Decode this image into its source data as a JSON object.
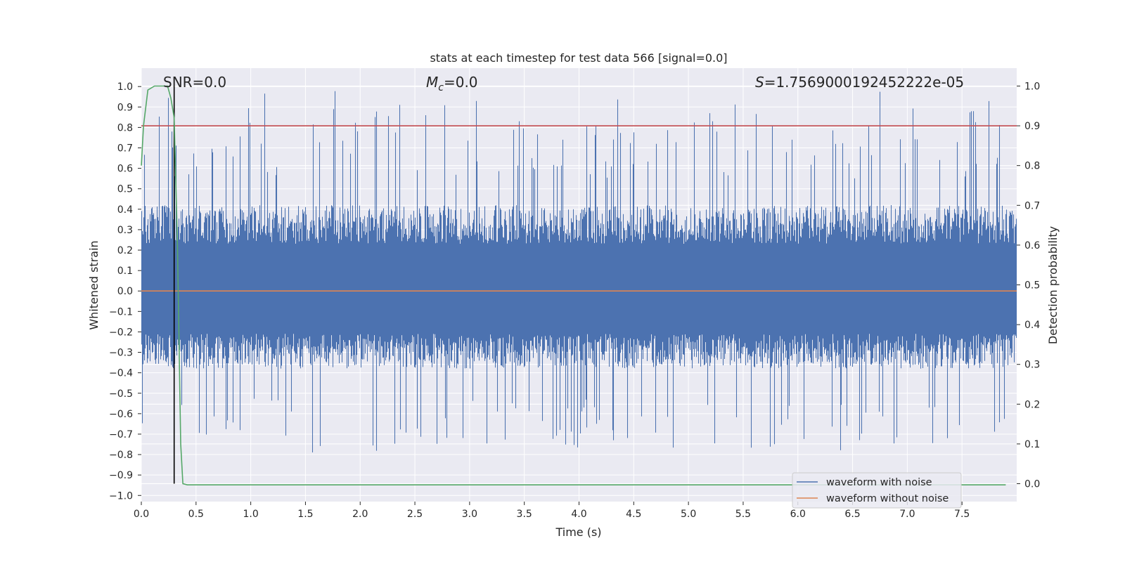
{
  "chart_data": {
    "type": "line",
    "title": "stats at each timestep for test data 566 [signal=0.0]",
    "xlabel": "Time (s)",
    "ylabel": "Whitened strain",
    "ylabel_right": "Detection probability",
    "xlim": [
      0.0,
      8.0
    ],
    "ylim": [
      -1.03,
      1.09
    ],
    "ylim_right": [
      -0.045,
      1.045
    ],
    "x_ticks": [
      "0.0",
      "0.5",
      "1.0",
      "1.5",
      "2.0",
      "2.5",
      "3.0",
      "3.5",
      "4.0",
      "4.5",
      "5.0",
      "5.5",
      "6.0",
      "6.5",
      "7.0",
      "7.5"
    ],
    "y_ticks": [
      "1.0",
      "0.9",
      "0.8",
      "0.7",
      "0.6",
      "0.5",
      "0.4",
      "0.3",
      "0.2",
      "0.1",
      "0.0",
      "−0.1",
      "−0.2",
      "−0.3",
      "−0.4",
      "−0.5",
      "−0.6",
      "−0.7",
      "−0.8",
      "−0.9",
      "−1.0"
    ],
    "y_ticks_right": [
      "1.0",
      "0.9",
      "0.8",
      "0.7",
      "0.6",
      "0.5",
      "0.4",
      "0.3",
      "0.2",
      "0.1",
      "0.0"
    ],
    "annotations": {
      "snr": "SNR=0.0",
      "mc_symbol": "M",
      "mc_sub": "c",
      "mc_value": "=0.0",
      "s_symbol": "S",
      "s_value": "=1.7569000192452222e-05"
    },
    "threshold": {
      "value_right": 0.9,
      "color": "#c44e52"
    },
    "marker_time": 0.3,
    "noise_envelope": {
      "upper_typical": 0.42,
      "lower_typical": -0.38,
      "peak_max": 1.0,
      "peak_min": -0.93
    },
    "series": [
      {
        "name": "waveform with noise",
        "color": "#4c72b0",
        "axis": "left"
      },
      {
        "name": "waveform without noise",
        "color": "#dd8452",
        "axis": "left",
        "value": 0.0
      },
      {
        "name": "detection probability",
        "color": "#55a868",
        "axis": "right",
        "x": [
          0.0,
          0.02,
          0.06,
          0.12,
          0.18,
          0.24,
          0.27,
          0.3,
          0.33,
          0.36,
          0.38,
          0.42,
          1.0,
          4.0,
          7.9
        ],
        "y": [
          0.8,
          0.9,
          0.99,
          1.0,
          1.0,
          1.0,
          0.97,
          0.92,
          0.6,
          0.1,
          0.0,
          -0.003,
          -0.003,
          -0.003,
          -0.003
        ]
      }
    ],
    "legend": {
      "position": "lower-right",
      "entries": [
        {
          "label": "waveform with noise",
          "color": "#4c72b0"
        },
        {
          "label": "waveform without noise",
          "color": "#dd8452"
        }
      ]
    }
  }
}
